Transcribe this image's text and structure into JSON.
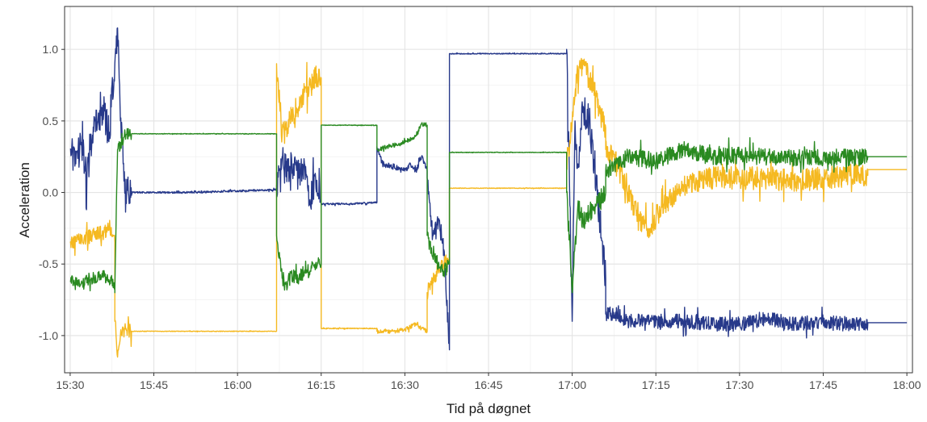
{
  "chart_data": {
    "type": "line",
    "title": "",
    "xlabel": "Tid på døgnet",
    "ylabel": "Acceleration",
    "x_unit": "time of day",
    "xlim": [
      "15:29",
      "18:01"
    ],
    "ylim": [
      -1.26,
      1.3
    ],
    "x_ticks": [
      "15:30",
      "15:45",
      "16:00",
      "16:15",
      "16:30",
      "16:45",
      "17:00",
      "17:15",
      "17:30",
      "17:45",
      "18:00"
    ],
    "y_ticks": [
      -1.0,
      -0.5,
      0.0,
      0.5,
      1.0
    ],
    "y_tick_labels": [
      "-1.0",
      "-0.5",
      "0.0",
      "0.5",
      "1.0"
    ],
    "grid": true,
    "legend": "none",
    "colors": {
      "blue": "#27398a",
      "yellow": "#f5b921",
      "green": "#2a8a21"
    },
    "series": [
      {
        "color": "blue",
        "segments": [
          {
            "x": [
              "15:30",
              "15:31",
              "15:32",
              "15:33",
              "15:34",
              "15:35",
              "15:36",
              "15:37",
              "15:38",
              "15:38:30",
              "15:39",
              "15:39:30",
              "15:40",
              "15:41"
            ],
            "y": [
              0.3,
              0.2,
              0.35,
              0.1,
              0.4,
              0.5,
              0.55,
              0.4,
              0.9,
              1.15,
              0.5,
              0.2,
              0.0,
              -0.02
            ],
            "noise": 0.12
          },
          {
            "x": [
              "15:41",
              "15:50",
              "16:00",
              "16:07"
            ],
            "y": [
              0.0,
              0.0,
              0.01,
              0.02
            ],
            "noise": 0.006
          },
          {
            "x": [
              "16:07",
              "16:08",
              "16:09",
              "16:10",
              "16:11",
              "16:12",
              "16:13",
              "16:14",
              "16:15"
            ],
            "y": [
              0.05,
              0.25,
              0.15,
              0.2,
              0.1,
              0.2,
              -0.05,
              0.1,
              -0.05
            ],
            "noise": 0.1
          },
          {
            "x": [
              "16:15",
              "16:20",
              "16:25"
            ],
            "y": [
              -0.08,
              -0.08,
              -0.07
            ],
            "noise": 0.006
          },
          {
            "x": [
              "16:25",
              "16:26",
              "16:28",
              "16:30",
              "16:31",
              "16:32",
              "16:33",
              "16:34"
            ],
            "y": [
              0.32,
              0.2,
              0.18,
              0.15,
              0.2,
              0.15,
              0.25,
              0.15
            ],
            "noise": 0.02
          },
          {
            "x": [
              "16:34",
              "16:35",
              "16:36",
              "16:37",
              "16:38"
            ],
            "y": [
              0.1,
              -0.3,
              -0.2,
              -0.4,
              -1.1
            ],
            "noise": 0.06
          },
          {
            "x": [
              "16:38",
              "16:40",
              "16:50",
              "16:59"
            ],
            "y": [
              0.97,
              0.97,
              0.97,
              0.97
            ],
            "noise": 0.003
          },
          {
            "x": [
              "16:59",
              "17:00",
              "17:00:30",
              "17:01",
              "17:02",
              "17:03",
              "17:04",
              "17:05",
              "17:06"
            ],
            "y": [
              1.0,
              -0.9,
              0.5,
              0.2,
              0.6,
              0.5,
              0.2,
              -0.2,
              -0.6
            ],
            "noise": 0.12
          },
          {
            "x": [
              "17:06",
              "17:08",
              "17:10",
              "17:15",
              "17:20",
              "17:25",
              "17:30",
              "17:35",
              "17:40",
              "17:45",
              "17:50",
              "17:53"
            ],
            "y": [
              -0.85,
              -0.85,
              -0.9,
              -0.9,
              -0.9,
              -0.92,
              -0.92,
              -0.88,
              -0.92,
              -0.9,
              -0.92,
              -0.92
            ],
            "noise": 0.05
          },
          {
            "x": [
              "17:53",
              "18:00"
            ],
            "y": [
              -0.91,
              -0.91
            ],
            "noise": 0
          }
        ]
      },
      {
        "color": "yellow",
        "segments": [
          {
            "x": [
              "15:30",
              "15:32",
              "15:34",
              "15:36",
              "15:37",
              "15:38"
            ],
            "y": [
              -0.35,
              -0.33,
              -0.3,
              -0.28,
              -0.25,
              -0.35
            ],
            "noise": 0.05
          },
          {
            "x": [
              "15:38",
              "15:38:30",
              "15:39",
              "15:40",
              "15:41"
            ],
            "y": [
              -0.9,
              -1.15,
              -1.0,
              -0.95,
              -0.97
            ],
            "noise": 0.05
          },
          {
            "x": [
              "15:41",
              "15:50",
              "16:00",
              "16:07"
            ],
            "y": [
              -0.97,
              -0.97,
              -0.97,
              -0.97
            ],
            "noise": 0.002
          },
          {
            "x": [
              "16:07",
              "16:08",
              "16:09",
              "16:10",
              "16:11",
              "16:12",
              "16:13",
              "16:14",
              "16:15"
            ],
            "y": [
              0.9,
              0.4,
              0.45,
              0.55,
              0.6,
              0.7,
              0.75,
              0.8,
              0.8
            ],
            "noise": 0.09
          },
          {
            "x": [
              "16:15",
              "16:20",
              "16:25"
            ],
            "y": [
              -0.95,
              -0.95,
              -0.95
            ],
            "noise": 0.003
          },
          {
            "x": [
              "16:25",
              "16:26",
              "16:28",
              "16:30",
              "16:32",
              "16:33",
              "16:34"
            ],
            "y": [
              -0.97,
              -0.97,
              -0.97,
              -0.96,
              -0.92,
              -0.95,
              -0.97
            ],
            "noise": 0.015
          },
          {
            "x": [
              "16:34",
              "16:35",
              "16:36",
              "16:37",
              "16:38"
            ],
            "y": [
              -0.7,
              -0.6,
              -0.55,
              -0.5,
              -0.45
            ],
            "noise": 0.05
          },
          {
            "x": [
              "16:38",
              "16:45",
              "16:55",
              "16:59"
            ],
            "y": [
              0.03,
              0.03,
              0.03,
              0.03
            ],
            "noise": 0.002
          },
          {
            "x": [
              "16:59",
              "17:00",
              "17:01",
              "17:02",
              "17:03",
              "17:04",
              "17:05",
              "17:06"
            ],
            "y": [
              0.2,
              0.5,
              0.85,
              0.9,
              0.8,
              0.7,
              0.55,
              0.45
            ],
            "noise": 0.08
          },
          {
            "x": [
              "17:06",
              "17:08",
              "17:10",
              "17:12",
              "17:14",
              "17:16",
              "17:20",
              "17:25",
              "17:30",
              "17:35",
              "17:40",
              "17:45",
              "17:50",
              "17:53"
            ],
            "y": [
              0.3,
              0.2,
              0.0,
              -0.2,
              -0.25,
              -0.1,
              0.05,
              0.1,
              0.1,
              0.1,
              0.08,
              0.1,
              0.12,
              0.12
            ],
            "noise": 0.08
          },
          {
            "x": [
              "17:53",
              "18:00"
            ],
            "y": [
              0.16,
              0.16
            ],
            "noise": 0
          }
        ]
      },
      {
        "color": "green",
        "segments": [
          {
            "x": [
              "15:30",
              "15:32",
              "15:34",
              "15:36",
              "15:37",
              "15:38"
            ],
            "y": [
              -0.62,
              -0.63,
              -0.6,
              -0.58,
              -0.62,
              -0.65
            ],
            "noise": 0.04
          },
          {
            "x": [
              "15:38",
              "15:38:30",
              "15:39",
              "15:40",
              "15:41"
            ],
            "y": [
              -0.7,
              0.3,
              0.35,
              0.4,
              0.41
            ],
            "noise": 0.05
          },
          {
            "x": [
              "15:41",
              "15:50",
              "16:00",
              "16:07"
            ],
            "y": [
              0.41,
              0.41,
              0.41,
              0.41
            ],
            "noise": 0.002
          },
          {
            "x": [
              "16:07",
              "16:08",
              "16:09",
              "16:10",
              "16:11",
              "16:12",
              "16:13",
              "16:14",
              "16:15"
            ],
            "y": [
              -0.3,
              -0.6,
              -0.62,
              -0.58,
              -0.6,
              -0.55,
              -0.55,
              -0.5,
              -0.5
            ],
            "noise": 0.05
          },
          {
            "x": [
              "16:15",
              "16:20",
              "16:25"
            ],
            "y": [
              0.47,
              0.47,
              0.47
            ],
            "noise": 0.002
          },
          {
            "x": [
              "16:25",
              "16:26",
              "16:28",
              "16:30",
              "16:32",
              "16:33",
              "16:34"
            ],
            "y": [
              0.3,
              0.31,
              0.33,
              0.35,
              0.4,
              0.48,
              0.47
            ],
            "noise": 0.015
          },
          {
            "x": [
              "16:34",
              "16:35",
              "16:36",
              "16:37",
              "16:38"
            ],
            "y": [
              -0.3,
              -0.45,
              -0.5,
              -0.55,
              -0.5
            ],
            "noise": 0.05
          },
          {
            "x": [
              "16:38",
              "16:45",
              "16:55",
              "16:59"
            ],
            "y": [
              0.28,
              0.28,
              0.28,
              0.28
            ],
            "noise": 0.002
          },
          {
            "x": [
              "16:59",
              "17:00",
              "17:01",
              "17:02",
              "17:03",
              "17:04",
              "17:05",
              "17:06"
            ],
            "y": [
              0.0,
              -0.7,
              -0.1,
              -0.2,
              -0.15,
              -0.1,
              -0.05,
              0.0
            ],
            "noise": 0.07
          },
          {
            "x": [
              "17:06",
              "17:08",
              "17:10",
              "17:15",
              "17:20",
              "17:25",
              "17:30",
              "17:35",
              "17:40",
              "17:45",
              "17:50",
              "17:53"
            ],
            "y": [
              0.15,
              0.2,
              0.25,
              0.22,
              0.3,
              0.25,
              0.26,
              0.25,
              0.24,
              0.25,
              0.24,
              0.25
            ],
            "noise": 0.06
          },
          {
            "x": [
              "17:53",
              "18:00"
            ],
            "y": [
              0.25,
              0.25
            ],
            "noise": 0
          }
        ]
      }
    ]
  }
}
